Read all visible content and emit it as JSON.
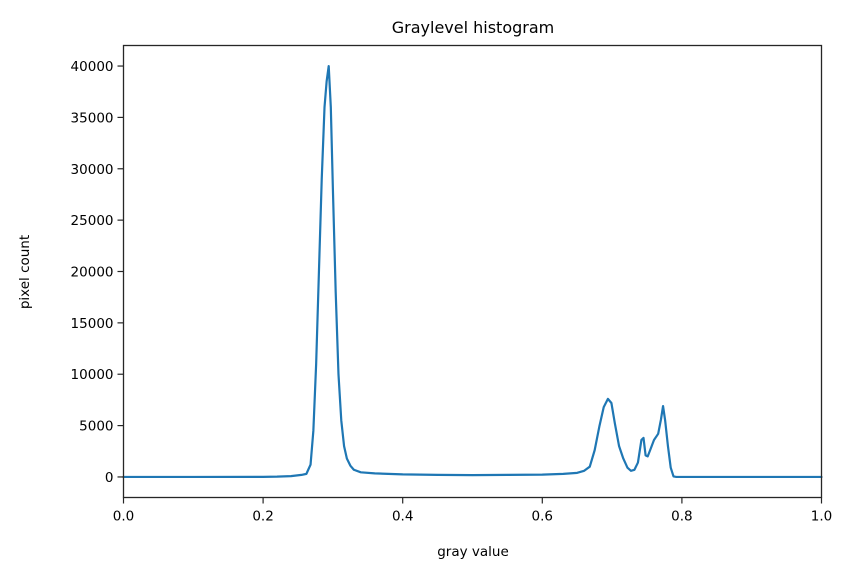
{
  "chart_data": {
    "type": "line",
    "title": "Graylevel histogram",
    "xlabel": "gray value",
    "ylabel": "pixel count",
    "xlim": [
      0.0,
      1.0
    ],
    "ylim": [
      -2000,
      42000
    ],
    "grid": false,
    "legend": null,
    "xticks": [
      "0.0",
      "0.2",
      "0.4",
      "0.6",
      "0.8",
      "1.0"
    ],
    "yticks": [
      "0",
      "5000",
      "10000",
      "15000",
      "20000",
      "25000",
      "30000",
      "35000",
      "40000"
    ],
    "series": [
      {
        "name": "histogram",
        "color": "#1f77b4",
        "x": [
          0.0,
          0.1,
          0.2,
          0.22,
          0.24,
          0.255,
          0.262,
          0.268,
          0.272,
          0.276,
          0.28,
          0.284,
          0.288,
          0.291,
          0.294,
          0.297,
          0.3,
          0.304,
          0.308,
          0.312,
          0.316,
          0.32,
          0.325,
          0.33,
          0.34,
          0.36,
          0.4,
          0.45,
          0.5,
          0.55,
          0.6,
          0.63,
          0.65,
          0.66,
          0.668,
          0.675,
          0.682,
          0.688,
          0.694,
          0.699,
          0.704,
          0.71,
          0.716,
          0.722,
          0.727,
          0.732,
          0.737,
          0.742,
          0.745,
          0.748,
          0.751,
          0.755,
          0.76,
          0.766,
          0.77,
          0.773,
          0.776,
          0.78,
          0.784,
          0.788,
          0.792,
          0.8,
          0.85,
          0.9,
          0.95,
          1.0
        ],
        "y": [
          0,
          0,
          10,
          30,
          80,
          200,
          300,
          1200,
          4500,
          11000,
          20000,
          29000,
          36000,
          38500,
          40000,
          36000,
          28000,
          18000,
          10000,
          5500,
          3000,
          1800,
          1100,
          700,
          450,
          350,
          250,
          200,
          180,
          200,
          230,
          300,
          400,
          600,
          1000,
          2600,
          5000,
          6800,
          7600,
          7200,
          5200,
          3000,
          1800,
          900,
          600,
          700,
          1400,
          3600,
          3800,
          2100,
          2000,
          2700,
          3600,
          4200,
          5600,
          6900,
          5500,
          3000,
          900,
          50,
          0,
          0,
          0,
          0,
          0,
          0
        ]
      }
    ]
  }
}
